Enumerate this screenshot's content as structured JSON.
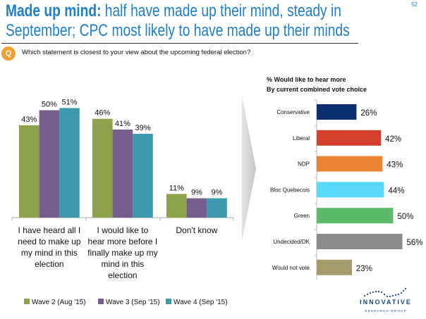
{
  "header": {
    "title_bold": "Made up mind:",
    "title_rest": " half have made up their mind, steady in September; CPC most likely to have made up their minds",
    "page_number": "52",
    "question_badge": "Q",
    "question": "Which statement is closest to your view about the upcoming federal election?"
  },
  "logo": {
    "name": "INNOVATIVE",
    "sub": "RESEARCH GROUP"
  },
  "chart_data": [
    {
      "type": "bar",
      "categories": [
        [
          "I have heard all I",
          "need to make up",
          "my mind in this",
          "election"
        ],
        [
          "I would like to",
          "hear more before I",
          "finally make up my",
          "mind in this",
          "election"
        ],
        [
          "Don't know"
        ]
      ],
      "series": [
        {
          "name": "Wave 2 (Aug '15)",
          "color": "#8ca34c",
          "values": [
            43,
            46,
            11
          ]
        },
        {
          "name": "Wave 3 (Sep '15)",
          "color": "#765d8e",
          "values": [
            50,
            41,
            9
          ]
        },
        {
          "name": "Wave 4 (Sep '15)",
          "color": "#3b98ae",
          "values": [
            51,
            39,
            9
          ]
        }
      ],
      "value_suffix": "%",
      "legend_position": "bottom",
      "grid": false
    },
    {
      "type": "bar",
      "orientation": "horizontal",
      "title": [
        "% Would like to hear more",
        "By current combined vote choice"
      ],
      "categories": [
        "Conservative",
        "Liberal",
        "NDP",
        "Bloc Quebecois",
        "Green",
        "Undecided/DK",
        "Would not vote"
      ],
      "values": [
        26,
        42,
        43,
        44,
        50,
        56,
        23
      ],
      "colors": [
        "#0b2f6e",
        "#d33f2a",
        "#ed8434",
        "#5ad8f8",
        "#5bbb66",
        "#8c8c8c",
        "#a59b68"
      ],
      "value_suffix": "%",
      "grid": false
    }
  ]
}
